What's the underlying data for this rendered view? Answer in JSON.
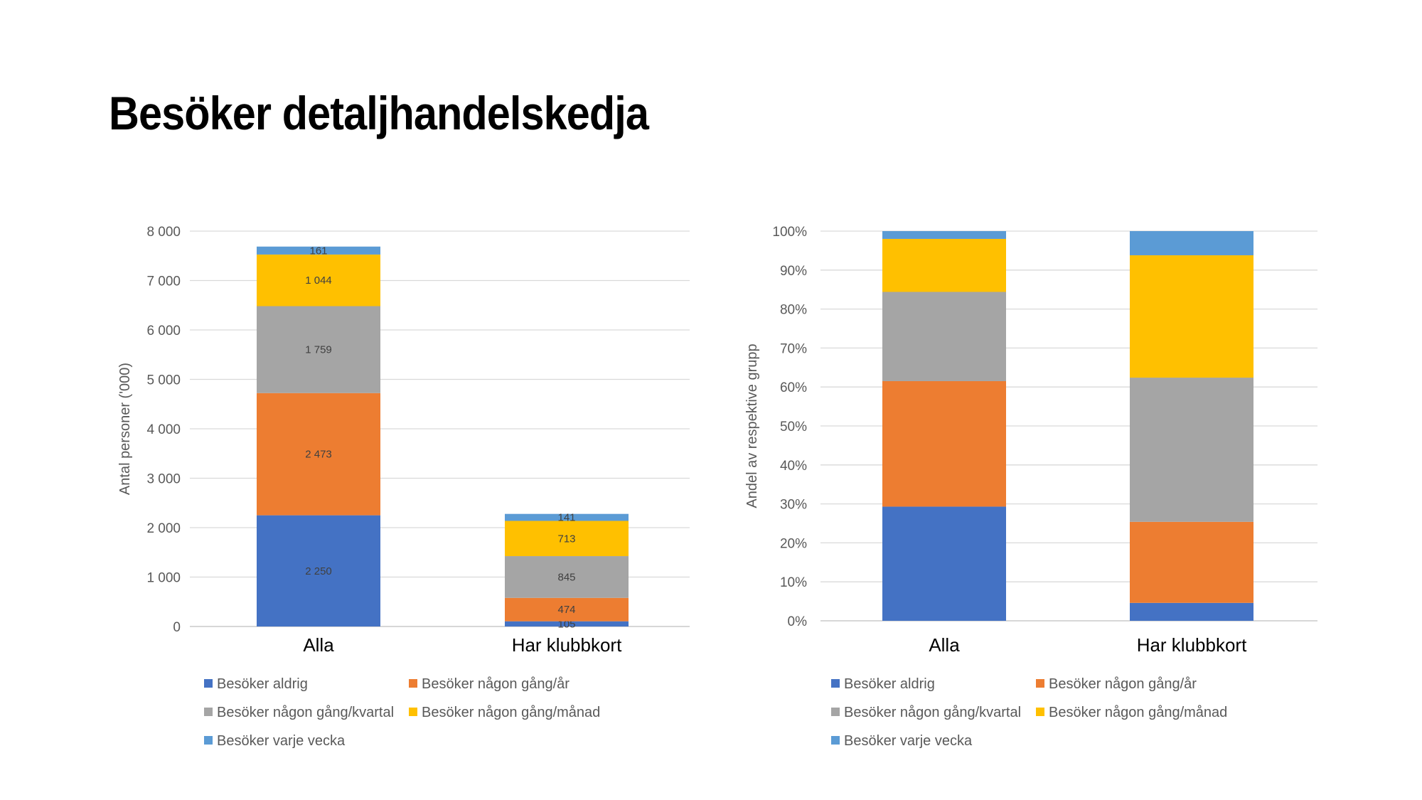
{
  "slide": {
    "title": "Besöker detaljhandelskedja"
  },
  "chart_data": [
    {
      "type": "bar",
      "stacked": true,
      "categories": [
        "Alla",
        "Har klubbkort"
      ],
      "series": [
        {
          "name": "Besöker aldrig",
          "values": [
            2250,
            105
          ],
          "labels": [
            "2 250",
            "105"
          ],
          "color": "#4472C4"
        },
        {
          "name": "Besöker någon gång/år",
          "values": [
            2473,
            474
          ],
          "labels": [
            "2 473",
            "474"
          ],
          "color": "#ED7D31"
        },
        {
          "name": "Besöker någon gång/kvartal",
          "values": [
            1759,
            845
          ],
          "labels": [
            "1 759",
            "845"
          ],
          "color": "#A5A5A5"
        },
        {
          "name": "Besöker någon gång/månad",
          "values": [
            1044,
            713
          ],
          "labels": [
            "1 044",
            "713"
          ],
          "color": "#FFC000"
        },
        {
          "name": "Besöker varje vecka",
          "values": [
            161,
            141
          ],
          "labels": [
            "161",
            "141"
          ],
          "color": "#5B9BD5"
        }
      ],
      "ylabel": "Antal personer ('000)",
      "ylim": [
        0,
        8000
      ],
      "yticks": [
        "0",
        "1 000",
        "2 000",
        "3 000",
        "4 000",
        "5 000",
        "6 000",
        "7 000",
        "8 000"
      ],
      "grid": true,
      "legend": "bottom"
    },
    {
      "type": "bar",
      "stacked": true,
      "percent": true,
      "categories": [
        "Alla",
        "Har klubbkort"
      ],
      "series": [
        {
          "name": "Besöker aldrig",
          "values": [
            29.3,
            4.6
          ],
          "color": "#4472C4"
        },
        {
          "name": "Besöker någon gång/år",
          "values": [
            32.2,
            20.8
          ],
          "color": "#ED7D31"
        },
        {
          "name": "Besöker någon gång/kvartal",
          "values": [
            22.9,
            37.0
          ],
          "color": "#A5A5A5"
        },
        {
          "name": "Besöker någon gång/månad",
          "values": [
            13.6,
            31.4
          ],
          "color": "#FFC000"
        },
        {
          "name": "Besöker varje vecka",
          "values": [
            2.0,
            6.2
          ],
          "color": "#5B9BD5"
        }
      ],
      "ylabel": "Andel av respektive grupp",
      "ylim": [
        0,
        100
      ],
      "yticks": [
        "0%",
        "10%",
        "20%",
        "30%",
        "40%",
        "50%",
        "60%",
        "70%",
        "80%",
        "90%",
        "100%"
      ],
      "grid": true,
      "legend": "bottom"
    }
  ]
}
